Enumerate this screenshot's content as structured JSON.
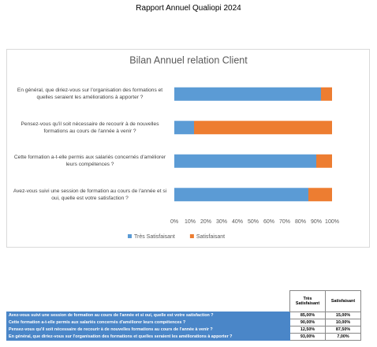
{
  "header": {
    "title": "Rapport Annuel Qualiopi 2024"
  },
  "chart_data": {
    "type": "stacked-bar-horizontal",
    "title": "Bilan Annuel relation Client",
    "categories": [
      "En général, que diriez-vous sur l'organisation des formations et quelles seraient les améliorations à apporter ?",
      "Pensez-vous qu'il soit nécessaire de recourir à de nouvelles formations au cours de l'année à venir ?",
      "Cette formation a-t-elle permis aux salariés concernés d'améliorer leurs compétences ?",
      "Avez-vous suivi une session de formation au cours de l'année et si oui, quelle est votre satisfaction ?"
    ],
    "series": [
      {
        "name": "Très Satisfaisant",
        "color": "#5b9bd5",
        "values": [
          93,
          12.5,
          90,
          85
        ]
      },
      {
        "name": "Satisfaisant",
        "color": "#ed7d31",
        "values": [
          7,
          87.5,
          10,
          15
        ]
      }
    ],
    "xlim": [
      0,
      100
    ],
    "xticks": [
      {
        "value": 0,
        "label": "0%"
      },
      {
        "value": 10,
        "label": "10%"
      },
      {
        "value": 20,
        "label": "20%"
      },
      {
        "value": 30,
        "label": "30%"
      },
      {
        "value": 40,
        "label": "40%"
      },
      {
        "value": 50,
        "label": "50%"
      },
      {
        "value": 60,
        "label": "60%"
      },
      {
        "value": 70,
        "label": "70%"
      },
      {
        "value": 80,
        "label": "80%"
      },
      {
        "value": 90,
        "label": "90%"
      },
      {
        "value": 100,
        "label": "100%"
      }
    ],
    "grid": false,
    "legend": "bottom"
  },
  "table": {
    "columns": [
      "Très Satisfaisant",
      "Satisfaisant"
    ],
    "rows": [
      [
        "Avez-vous suivi une session de formation au cours de l'année et si oui, quelle est votre satisfaction ?",
        "85,00%",
        "15,00%"
      ],
      [
        "Cette formation a-t-elle permis aux salariés concernés d'améliorer leurs compétences ?",
        "90,00%",
        "10,00%"
      ],
      [
        "Pensez-vous qu'il soit nécessaire de recourir à de nouvelles formations au cours de l'année à venir ?",
        "12,50%",
        "87,50%"
      ],
      [
        "En général, que diriez-vous sur l'organisation des formations et quelles seraient les améliorations à apporter ?",
        "93,00%",
        "7,00%"
      ]
    ]
  }
}
